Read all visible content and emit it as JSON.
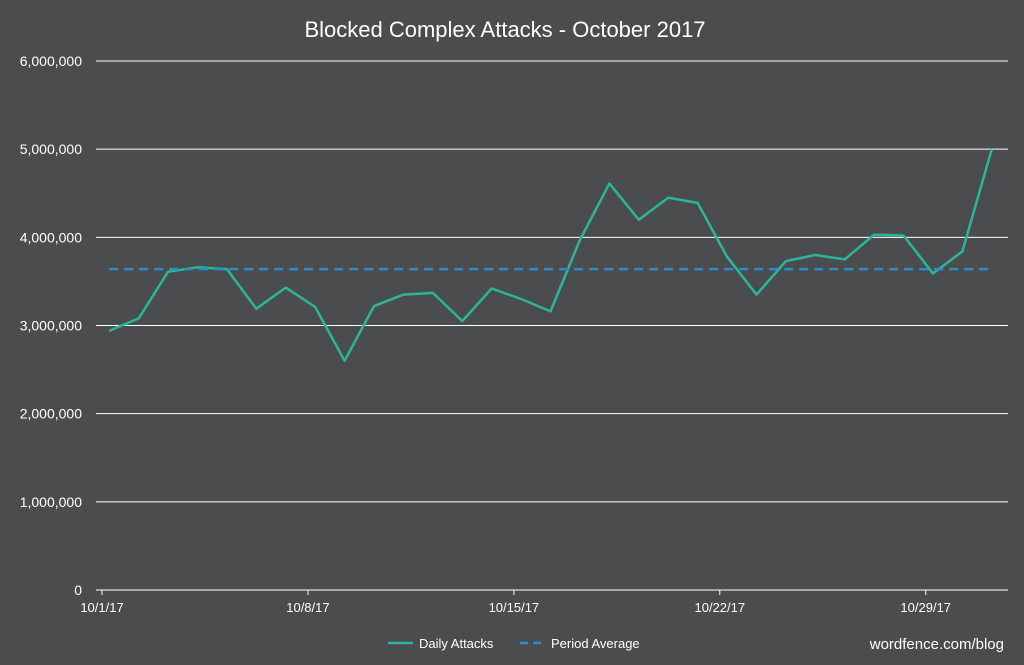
{
  "chart_data": {
    "type": "line",
    "title": "Blocked Complex Attacks - October 2017",
    "xlabel": "",
    "ylabel": "",
    "ylim": [
      0,
      6000000
    ],
    "y_ticks": [
      "0",
      "1,000,000",
      "2,000,000",
      "3,000,000",
      "4,000,000",
      "5,000,000",
      "6,000,000"
    ],
    "x_ticks": [
      "10/1/17",
      "10/8/17",
      "10/15/17",
      "10/22/17",
      "10/29/17"
    ],
    "x_tick_days": [
      1,
      8,
      15,
      22,
      29
    ],
    "grid": "horizontal",
    "legend_position": "bottom",
    "series": [
      {
        "name": "Daily Attacks",
        "color": "#2bb69b",
        "style": "solid",
        "x": [
          1,
          2,
          3,
          4,
          5,
          6,
          7,
          8,
          9,
          10,
          11,
          12,
          13,
          14,
          15,
          16,
          17,
          18,
          19,
          20,
          21,
          22,
          23,
          24,
          25,
          26,
          27,
          28,
          29,
          30,
          31
        ],
        "values": [
          2940000,
          3080000,
          3610000,
          3660000,
          3640000,
          3190000,
          3430000,
          3210000,
          2600000,
          3220000,
          3350000,
          3370000,
          3050000,
          3420000,
          3300000,
          3160000,
          3970000,
          4610000,
          4200000,
          4450000,
          4390000,
          3780000,
          3350000,
          3730000,
          3800000,
          3750000,
          4030000,
          4020000,
          3590000,
          3840000,
          5000000
        ]
      },
      {
        "name": "Period Average",
        "color": "#2a8fc9",
        "style": "dashed",
        "x": [
          1,
          31
        ],
        "values": [
          3640000,
          3640000
        ]
      }
    ]
  },
  "watermark": "wordfence.com/blog"
}
